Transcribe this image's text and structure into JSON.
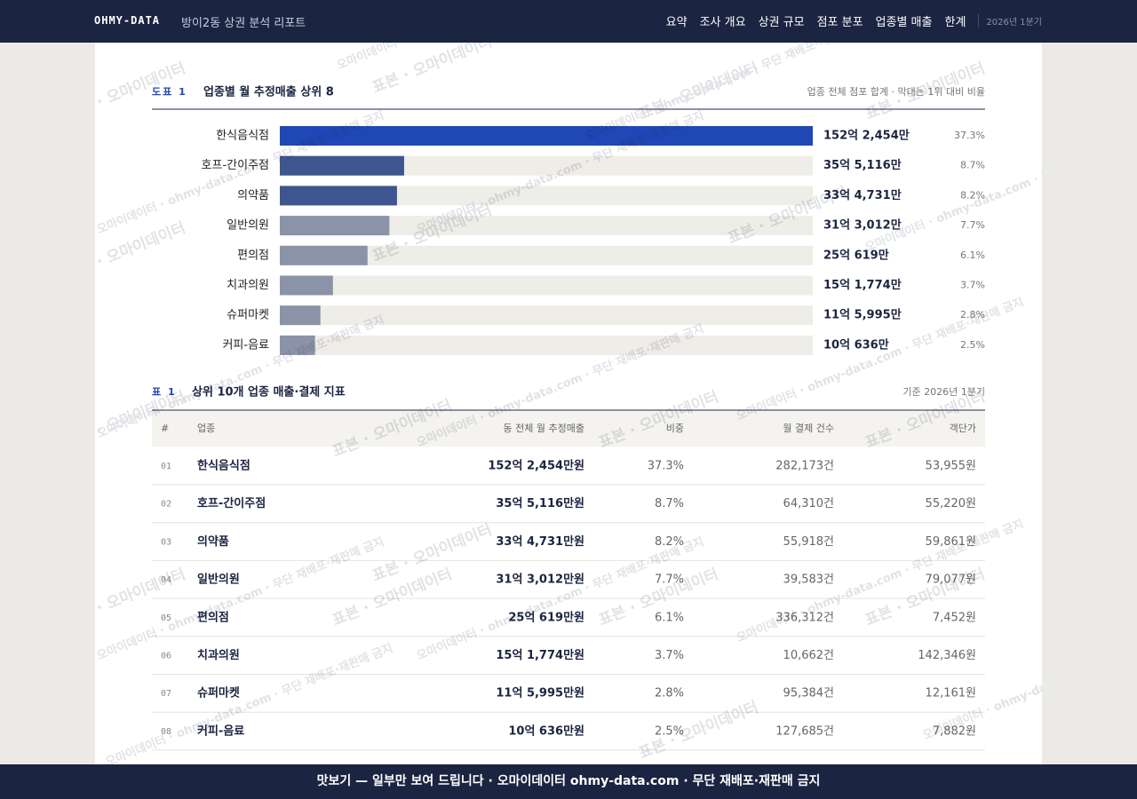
{
  "header": {
    "brand": "OHMY-DATA",
    "report_title": "방이2동 상권 분석 리포트",
    "nav": [
      "요약",
      "조사 개요",
      "상권 규모",
      "점포 분포",
      "업종별 매출",
      "한계"
    ],
    "period": "2026년 1분기"
  },
  "chart_data": {
    "type": "bar",
    "orientation": "horizontal",
    "label": "도표 1",
    "title": "업종별 월 추정매출 상위 8",
    "note": "업종 전체 점포 합계 · 막대는 1위 대비 비율",
    "categories": [
      "한식음식점",
      "호프-간이주점",
      "의약품",
      "일반의원",
      "편의점",
      "치과의원",
      "슈퍼마켓",
      "커피-음료"
    ],
    "values": [
      1522454,
      355116,
      334731,
      313012,
      250619,
      151774,
      115995,
      100636
    ],
    "value_labels": [
      "152억 2,454만",
      "35억 5,116만",
      "33억 4,731만",
      "31억 3,012만",
      "25억 619만",
      "15억 1,774만",
      "11억 5,995만",
      "10억 636만"
    ],
    "shares": [
      "37.3%",
      "8.7%",
      "8.2%",
      "7.7%",
      "6.1%",
      "3.7%",
      "2.8%",
      "2.5%"
    ],
    "colors": [
      "#1f47b5",
      "#3f5590",
      "#3f5590",
      "#8a93a8",
      "#8a93a8",
      "#8a93a8",
      "#8a93a8",
      "#8a93a8"
    ],
    "xlim": [
      0,
      1522454
    ]
  },
  "table": {
    "label": "표 1",
    "title": "상위 10개 업종 매출·결제 지표",
    "note": "기준 2026년 1분기",
    "columns": [
      "#",
      "업종",
      "동 전체 월 추정매출",
      "비중",
      "월 결제 건수",
      "객단가"
    ],
    "rows": [
      [
        "01",
        "한식음식점",
        "152억 2,454만원",
        "37.3%",
        "282,173건",
        "53,955원"
      ],
      [
        "02",
        "호프-간이주점",
        "35억 5,116만원",
        "8.7%",
        "64,310건",
        "55,220원"
      ],
      [
        "03",
        "의약품",
        "33억 4,731만원",
        "8.2%",
        "55,918건",
        "59,861원"
      ],
      [
        "04",
        "일반의원",
        "31억 3,012만원",
        "7.7%",
        "39,583건",
        "79,077원"
      ],
      [
        "05",
        "편의점",
        "25억 619만원",
        "6.1%",
        "336,312건",
        "7,452원"
      ],
      [
        "06",
        "치과의원",
        "15억 1,774만원",
        "3.7%",
        "10,662건",
        "142,346원"
      ],
      [
        "07",
        "슈퍼마켓",
        "11억 5,995만원",
        "2.8%",
        "95,384건",
        "12,161원"
      ],
      [
        "08",
        "커피-음료",
        "10억 636만원",
        "2.5%",
        "127,685건",
        "7,882원"
      ]
    ]
  },
  "watermarks": [
    "표본 · 오마이데이터",
    "오마이데이터 · ohmy-data.com · 무단 재배포·재판매 금지"
  ],
  "footer": "맛보기 — 일부만 보여 드립니다 · 오마이데이터 ohmy-data.com · 무단 재배포·재판매 금지"
}
